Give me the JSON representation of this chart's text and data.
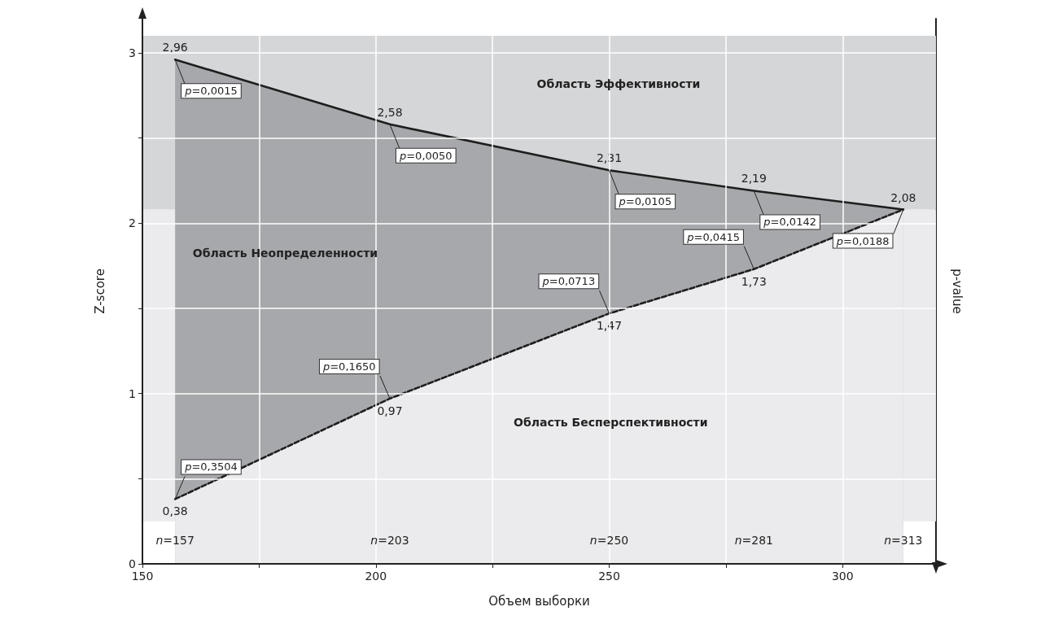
{
  "chart_data": {
    "type": "area",
    "xlabel": "Объем выборки",
    "ylabel": "Z-score",
    "y2label": "p-value",
    "x": [
      157,
      203,
      250,
      281,
      313
    ],
    "series": [
      {
        "color": "#1e1e1e",
        "line_style": "solid",
        "values": [
          2.96,
          2.58,
          2.31,
          2.19,
          2.08
        ],
        "value_labels": [
          "2,96",
          "2,58",
          "2,31",
          "2,19",
          "2,08"
        ]
      },
      {
        "color": "#1e1e1e",
        "line_style": "dashed",
        "values": [
          0.38,
          0.97,
          1.47,
          1.73,
          2.08
        ],
        "value_labels": [
          "0,38",
          "0,97",
          "1,47",
          "1,73",
          null
        ]
      }
    ],
    "xlim": [
      150,
      320
    ],
    "ylim": [
      0,
      3.2
    ],
    "xticks": [
      150,
      {
        "value": 175,
        "label": null
      },
      200,
      {
        "value": 225,
        "label": null
      },
      250,
      {
        "value": 275,
        "label": null
      },
      300
    ],
    "yticks": [
      0,
      {
        "value": 0.5,
        "label": null
      },
      1,
      {
        "value": 1.5,
        "label": null
      },
      2,
      {
        "value": 2.5,
        "label": null
      },
      3
    ],
    "grid": true,
    "marker": "none",
    "bands": [
      {
        "axis": "y",
        "from": 0.25,
        "to": 2.08,
        "color": "#ebebed"
      },
      {
        "axis": "y",
        "from": 2.08,
        "to": 3.1,
        "color": "#d5d6d8"
      }
    ],
    "annotations": [
      {
        "text": "p=0,0015",
        "x": 157,
        "y": 2.96
      },
      {
        "text": "p=0,0050",
        "x": 203,
        "y": 2.58
      },
      {
        "text": "p=0,0105",
        "x": 250,
        "y": 2.31
      },
      {
        "text": "p=0,0142",
        "x": 281,
        "y": 2.19
      },
      {
        "text": "p=0,0188",
        "x": 313,
        "y": 2.08
      },
      {
        "text": "p=0,3504",
        "x": 157,
        "y": 0.38
      },
      {
        "text": "p=0,1650",
        "x": 203,
        "y": 0.97
      },
      {
        "text": "p=0,0713",
        "x": 250,
        "y": 1.47
      },
      {
        "text": "p=0,0415",
        "x": 281,
        "y": 1.73
      },
      "Область Эффективности",
      "Область Неопределенности",
      "Область Бесперспективности"
    ],
    "x2lim": [
      150,
      320
    ],
    "x2ticks": [
      {
        "value": 157,
        "label": "n=157"
      },
      {
        "value": 203,
        "label": "n=203"
      },
      {
        "value": 250,
        "label": "n=250"
      },
      {
        "value": 281,
        "label": "n=281"
      },
      {
        "value": 313,
        "label": "n=313"
      }
    ]
  }
}
